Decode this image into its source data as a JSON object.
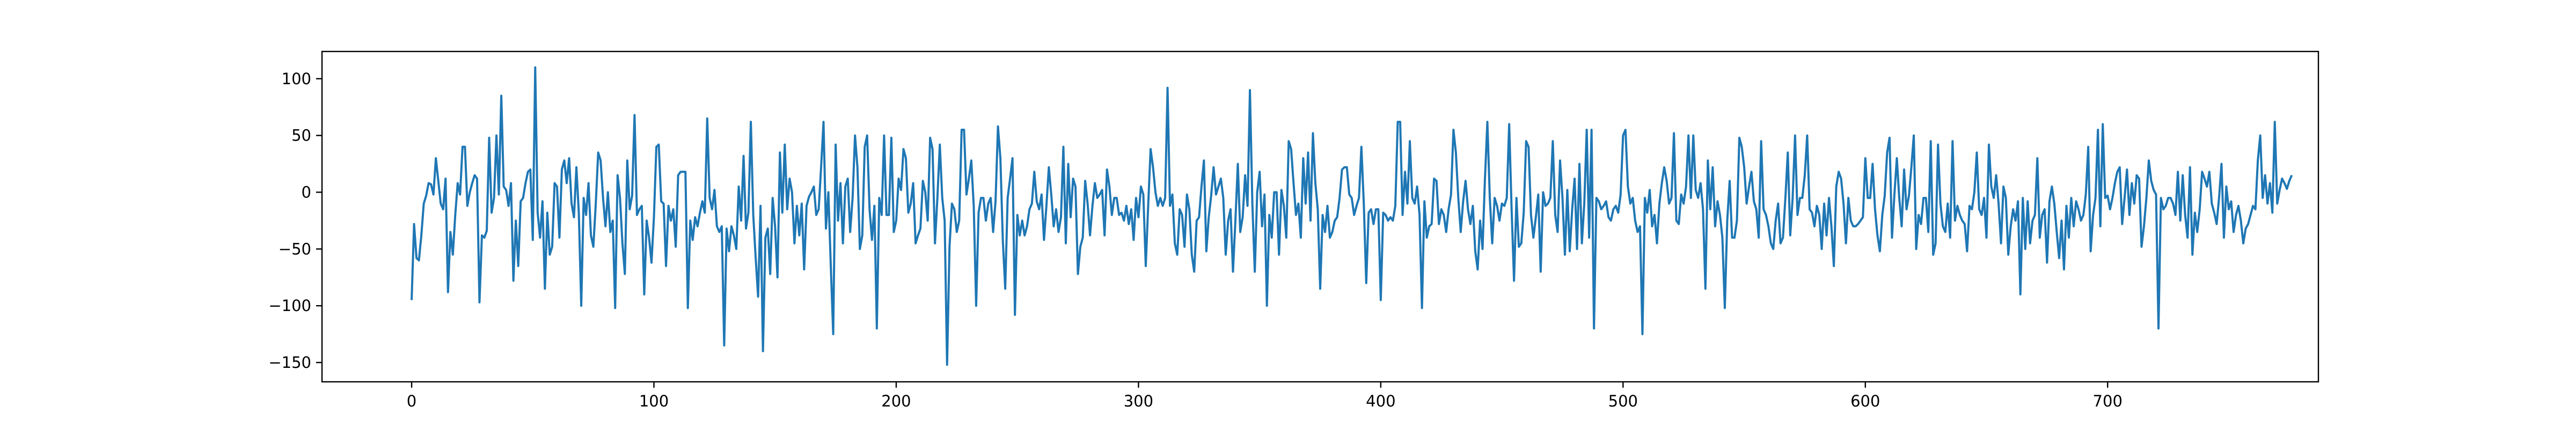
{
  "chart_data": {
    "type": "line",
    "title": "",
    "xlabel": "",
    "ylabel": "",
    "xlim": [
      -37,
      787
    ],
    "ylim": [
      -167,
      124
    ],
    "x_ticks": [
      0,
      100,
      200,
      300,
      400,
      500,
      600,
      700
    ],
    "y_ticks": [
      -150,
      -100,
      -50,
      0,
      50,
      100
    ],
    "grid": false,
    "legend": "none",
    "series": [
      {
        "color": "#1f77b4",
        "x_start": 0,
        "x_step": 1,
        "values": [
          -95,
          -28,
          -58,
          -60,
          -38,
          -10,
          -3,
          8,
          7,
          -2,
          30,
          10,
          -10,
          -15,
          12,
          -88,
          -35,
          -55,
          -20,
          8,
          -2,
          40,
          40,
          -12,
          0,
          8,
          15,
          12,
          -97,
          -38,
          -40,
          -34,
          48,
          -18,
          -5,
          50,
          -2,
          85,
          5,
          2,
          -12,
          8,
          -78,
          -25,
          -65,
          -8,
          -5,
          8,
          18,
          20,
          -42,
          110,
          -18,
          -40,
          -8,
          -85,
          -18,
          -55,
          -48,
          8,
          5,
          -40,
          20,
          28,
          8,
          30,
          -10,
          -22,
          22,
          -18,
          -100,
          -5,
          -20,
          8,
          -38,
          -48,
          -10,
          35,
          28,
          -5,
          -30,
          0,
          -35,
          -25,
          -102,
          15,
          -5,
          -45,
          -72,
          28,
          -15,
          -3,
          68,
          -20,
          -15,
          -12,
          -90,
          -25,
          -40,
          -62,
          -22,
          40,
          42,
          -8,
          -10,
          -65,
          -12,
          -25,
          -15,
          -48,
          15,
          18,
          18,
          18,
          -102,
          -25,
          -42,
          -22,
          -30,
          -18,
          -8,
          -18,
          65,
          -5,
          -15,
          2,
          -30,
          -35,
          -30,
          -135,
          -32,
          -52,
          -30,
          -38,
          -50,
          5,
          -25,
          32,
          -32,
          -18,
          62,
          -20,
          -58,
          -92,
          -12,
          -140,
          -40,
          -32,
          -72,
          -5,
          -30,
          -75,
          35,
          -18,
          42,
          -15,
          12,
          0,
          -45,
          -12,
          -38,
          -10,
          -68,
          -12,
          -4,
          0,
          5,
          -20,
          -15,
          22,
          62,
          -32,
          0,
          -65,
          -125,
          42,
          -25,
          8,
          -45,
          5,
          12,
          -35,
          -5,
          50,
          22,
          -50,
          -38,
          40,
          50,
          -15,
          -42,
          -12,
          -120,
          -5,
          -20,
          50,
          -20,
          -20,
          48,
          -35,
          -25,
          12,
          2,
          38,
          30,
          -18,
          -10,
          8,
          -45,
          -38,
          -32,
          10,
          0,
          -25,
          48,
          38,
          -45,
          -5,
          42,
          -5,
          -25,
          -152,
          -48,
          -10,
          -15,
          -35,
          -25,
          55,
          55,
          -2,
          12,
          28,
          -12,
          -100,
          -18,
          -5,
          -5,
          -25,
          -10,
          -5,
          -35,
          -8,
          58,
          30,
          -42,
          -85,
          -5,
          12,
          30,
          -108,
          -20,
          -38,
          -25,
          -38,
          -30,
          -15,
          -10,
          18,
          -8,
          -15,
          -2,
          -42,
          -12,
          22,
          -2,
          -30,
          -15,
          -35,
          -22,
          40,
          -45,
          25,
          -22,
          12,
          5,
          -72,
          -48,
          -40,
          10,
          -10,
          -38,
          -12,
          8,
          -5,
          -2,
          2,
          -38,
          20,
          5,
          -20,
          -5,
          -5,
          -20,
          -18,
          -25,
          -12,
          -28,
          -15,
          -42,
          -5,
          -22,
          5,
          -2,
          -65,
          -12,
          38,
          22,
          0,
          -12,
          -5,
          -12,
          -5,
          92,
          -12,
          -2,
          -45,
          -55,
          -15,
          -20,
          -48,
          -2,
          -15,
          -55,
          -70,
          -25,
          -22,
          5,
          28,
          -52,
          -22,
          -3,
          22,
          -2,
          5,
          12,
          -5,
          -55,
          -25,
          -15,
          -70,
          -25,
          25,
          -35,
          -22,
          15,
          -12,
          90,
          -10,
          -70,
          0,
          18,
          -30,
          -2,
          -100,
          -20,
          -40,
          0,
          0,
          -55,
          2,
          -12,
          -40,
          45,
          38,
          8,
          -20,
          -10,
          -40,
          30,
          -10,
          35,
          -25,
          52,
          8,
          -15,
          -85,
          -20,
          -35,
          -12,
          -40,
          -35,
          -25,
          -22,
          -5,
          20,
          22,
          22,
          -2,
          -5,
          -20,
          -12,
          -5,
          40,
          -10,
          -80,
          -18,
          -15,
          -28,
          -15,
          -15,
          -95,
          -18,
          -20,
          -25,
          -22,
          -25,
          -12,
          62,
          62,
          -20,
          18,
          -10,
          45,
          -5,
          -10,
          5,
          -20,
          -102,
          -8,
          -40,
          -30,
          -28,
          12,
          10,
          -28,
          -15,
          -20,
          -35,
          -15,
          -2,
          55,
          35,
          -5,
          -35,
          -8,
          10,
          -15,
          -28,
          -12,
          -52,
          -68,
          -25,
          -50,
          12,
          62,
          -5,
          -45,
          -5,
          -12,
          -25,
          -10,
          -12,
          -5,
          60,
          -15,
          -78,
          -5,
          -48,
          -45,
          -18,
          45,
          40,
          -20,
          -40,
          -22,
          -2,
          -70,
          0,
          -12,
          -10,
          -5,
          45,
          -20,
          -35,
          28,
          -5,
          -55,
          2,
          -52,
          -15,
          12,
          -50,
          25,
          -45,
          -10,
          55,
          -40,
          55,
          -120,
          -5,
          -8,
          -15,
          -12,
          -8,
          -22,
          -25,
          -15,
          -12,
          -18,
          -2,
          50,
          55,
          5,
          -10,
          -5,
          -25,
          -35,
          -30,
          -125,
          -5,
          -18,
          2,
          -30,
          -20,
          -45,
          -10,
          8,
          22,
          10,
          -10,
          -5,
          52,
          -25,
          -28,
          -2,
          -10,
          5,
          50,
          -5,
          50,
          2,
          -5,
          8,
          -15,
          -85,
          28,
          -15,
          22,
          -30,
          -8,
          -20,
          -40,
          -102,
          -25,
          10,
          -40,
          -40,
          -25,
          48,
          40,
          22,
          -10,
          5,
          18,
          -8,
          -15,
          -40,
          45,
          -15,
          -20,
          -30,
          -45,
          -50,
          -25,
          -10,
          -45,
          -40,
          -5,
          35,
          -38,
          -5,
          50,
          -20,
          -5,
          -5,
          15,
          50,
          -15,
          -18,
          -30,
          -12,
          -20,
          -50,
          -10,
          -38,
          -5,
          -30,
          -65,
          5,
          18,
          12,
          -10,
          -45,
          -5,
          -25,
          -30,
          -30,
          -28,
          -25,
          -22,
          30,
          -5,
          -5,
          25,
          -15,
          -38,
          -52,
          -20,
          -3,
          35,
          48,
          -40,
          -2,
          30,
          -5,
          -30,
          20,
          -15,
          -3,
          22,
          50,
          -50,
          -20,
          -28,
          -5,
          -5,
          -35,
          45,
          -55,
          -45,
          42,
          -10,
          -30,
          -35,
          -10,
          -40,
          45,
          -25,
          -12,
          -20,
          -25,
          -28,
          -52,
          -12,
          -15,
          0,
          35,
          -15,
          -20,
          -5,
          -40,
          42,
          5,
          -5,
          15,
          -10,
          -45,
          5,
          -5,
          -55,
          -30,
          -15,
          -25,
          -8,
          -90,
          -5,
          -50,
          -8,
          -45,
          -25,
          -20,
          30,
          -40,
          -20,
          -15,
          -62,
          -8,
          5,
          -10,
          -35,
          -58,
          -25,
          -68,
          -12,
          -40,
          -5,
          -30,
          -8,
          -15,
          -25,
          -20,
          -2,
          40,
          -52,
          -20,
          -5,
          55,
          -30,
          60,
          -5,
          -3,
          -15,
          -5,
          8,
          18,
          22,
          -28,
          -5,
          20,
          -20,
          8,
          -10,
          15,
          12,
          -48,
          -30,
          -5,
          28,
          10,
          2,
          -2,
          -120,
          -5,
          -15,
          -12,
          -5,
          -5,
          -10,
          -20,
          18,
          -25,
          15,
          -20,
          -40,
          22,
          -55,
          -18,
          -35,
          -15,
          18,
          12,
          5,
          18,
          -10,
          -18,
          -28,
          -5,
          25,
          -40,
          5,
          -15,
          -8,
          -35,
          -20,
          -12,
          -25,
          -45,
          -32,
          -28,
          -20,
          -12,
          -15,
          28,
          50,
          -5,
          15,
          -10,
          8,
          -18,
          62,
          -10,
          2,
          12,
          8,
          3,
          10,
          15
        ]
      }
    ]
  }
}
